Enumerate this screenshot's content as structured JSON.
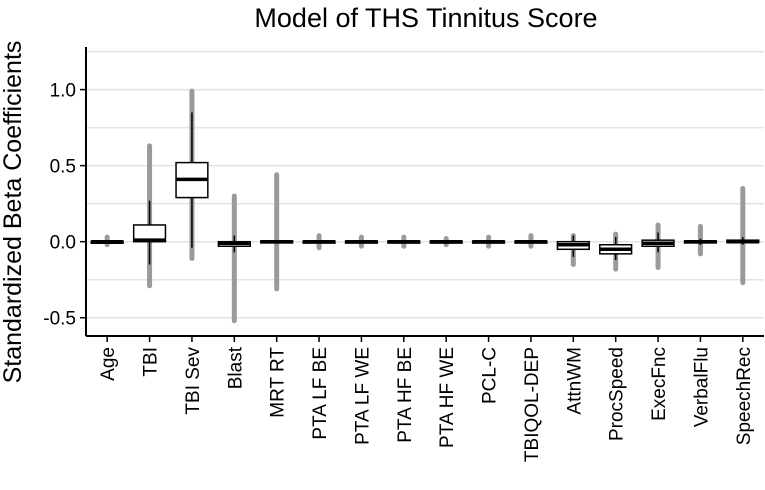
{
  "chart_data": {
    "type": "boxplot",
    "title": "Model of THS Tinnitus Score",
    "xlabel": "",
    "ylabel": "Standardized Beta Coefficients",
    "ylim": [
      -0.62,
      1.28
    ],
    "yticks": [
      1.0,
      0.5,
      0.0,
      -0.5
    ],
    "ytick_labels": [
      "1.0",
      "0.5",
      "0.0",
      "-0.5"
    ],
    "grid": true,
    "categories": [
      "Age",
      "TBI",
      "TBI Sev",
      "Blast",
      "MRT RT",
      "PTA LF BE",
      "PTA LF WE",
      "PTA HF BE",
      "PTA HF WE",
      "PCL-C",
      "TBIQOL-DEP",
      "AttnWM",
      "ProcSpeed",
      "ExecFnc",
      "VerbalFlu",
      "SpeechRec"
    ],
    "boxes": [
      {
        "q1": -0.003,
        "median": 0.0,
        "q3": 0.003,
        "whisker_low": -0.01,
        "whisker_high": 0.01,
        "outlier_min": -0.02,
        "outlier_max": 0.03
      },
      {
        "q1": 0.0,
        "median": 0.01,
        "q3": 0.11,
        "whisker_low": -0.15,
        "whisker_high": 0.27,
        "outlier_min": -0.29,
        "outlier_max": 0.63
      },
      {
        "q1": 0.29,
        "median": 0.41,
        "q3": 0.52,
        "whisker_low": -0.04,
        "whisker_high": 0.85,
        "outlier_min": -0.11,
        "outlier_max": 0.99
      },
      {
        "q1": -0.03,
        "median": -0.01,
        "q3": 0.0,
        "whisker_low": -0.07,
        "whisker_high": 0.04,
        "outlier_min": -0.52,
        "outlier_max": 0.3
      },
      {
        "q1": -0.005,
        "median": 0.0,
        "q3": 0.005,
        "whisker_low": -0.01,
        "whisker_high": 0.01,
        "outlier_min": -0.31,
        "outlier_max": 0.44
      },
      {
        "q1": -0.004,
        "median": 0.0,
        "q3": 0.004,
        "whisker_low": -0.01,
        "whisker_high": 0.01,
        "outlier_min": -0.04,
        "outlier_max": 0.04
      },
      {
        "q1": -0.004,
        "median": 0.0,
        "q3": 0.004,
        "whisker_low": -0.01,
        "whisker_high": 0.01,
        "outlier_min": -0.03,
        "outlier_max": 0.03
      },
      {
        "q1": -0.004,
        "median": 0.0,
        "q3": 0.004,
        "whisker_low": -0.01,
        "whisker_high": 0.01,
        "outlier_min": -0.03,
        "outlier_max": 0.03
      },
      {
        "q1": -0.004,
        "median": 0.0,
        "q3": 0.004,
        "whisker_low": -0.01,
        "whisker_high": 0.01,
        "outlier_min": -0.02,
        "outlier_max": 0.02
      },
      {
        "q1": -0.004,
        "median": 0.0,
        "q3": 0.004,
        "whisker_low": -0.01,
        "whisker_high": 0.01,
        "outlier_min": -0.03,
        "outlier_max": 0.03
      },
      {
        "q1": -0.004,
        "median": 0.0,
        "q3": 0.004,
        "whisker_low": -0.01,
        "whisker_high": 0.01,
        "outlier_min": -0.03,
        "outlier_max": 0.04
      },
      {
        "q1": -0.05,
        "median": -0.02,
        "q3": 0.0,
        "whisker_low": -0.1,
        "whisker_high": 0.04,
        "outlier_min": -0.15,
        "outlier_max": 0.04
      },
      {
        "q1": -0.08,
        "median": -0.05,
        "q3": -0.02,
        "whisker_low": -0.12,
        "whisker_high": 0.03,
        "outlier_min": -0.18,
        "outlier_max": 0.05
      },
      {
        "q1": -0.03,
        "median": -0.01,
        "q3": 0.01,
        "whisker_low": -0.07,
        "whisker_high": 0.06,
        "outlier_min": -0.17,
        "outlier_max": 0.11
      },
      {
        "q1": -0.005,
        "median": 0.0,
        "q3": 0.005,
        "whisker_low": -0.02,
        "whisker_high": 0.02,
        "outlier_min": -0.08,
        "outlier_max": 0.1
      },
      {
        "q1": -0.005,
        "median": 0.0,
        "q3": 0.01,
        "whisker_low": -0.02,
        "whisker_high": 0.03,
        "outlier_min": -0.27,
        "outlier_max": 0.35
      }
    ],
    "colors": {
      "axis": "#000000",
      "grid": "#e3e3e3",
      "box_fill": "#ffffff",
      "box_stroke": "#000000",
      "outliers": "#9a9a9a"
    }
  }
}
